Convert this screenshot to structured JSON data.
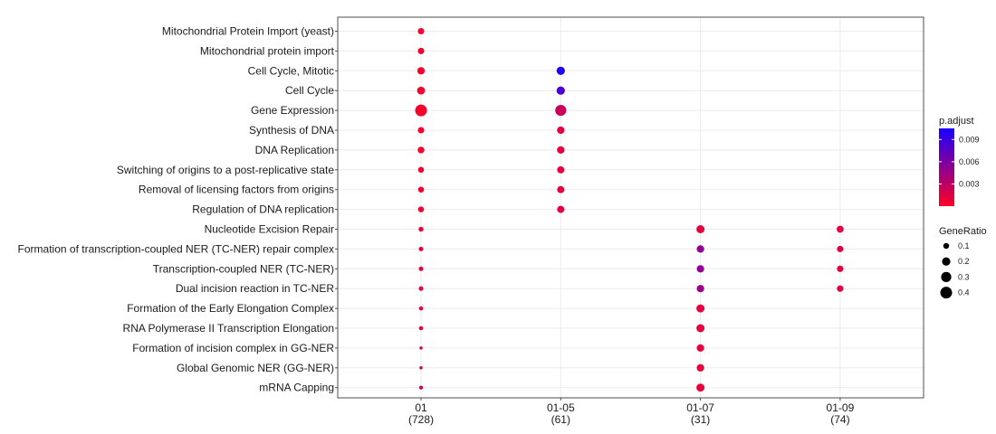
{
  "chart_data": {
    "type": "scatter",
    "subtype": "dotplot",
    "title": "",
    "xlabel": "",
    "ylabel": "",
    "grid": true,
    "legend_placement": "right",
    "categories_y": [
      "Mitochondrial Protein Import (yeast)",
      "Mitochondrial protein import",
      "Cell Cycle, Mitotic",
      "Cell Cycle",
      "Gene Expression",
      "Synthesis of DNA",
      "DNA Replication",
      "Switching of origins to a post-replicative state",
      "Removal of licensing factors from origins",
      "Regulation of DNA replication",
      "Nucleotide Excision Repair",
      "Formation of transcription-coupled NER (TC-NER) repair complex",
      "Transcription-coupled NER (TC-NER)",
      "Dual incision reaction in TC-NER",
      "Formation of the Early Elongation Complex",
      "RNA Polymerase II Transcription Elongation",
      "Formation of incision complex in GG-NER",
      "Global Genomic NER (GG-NER)",
      "mRNA Capping"
    ],
    "categories_x": [
      {
        "label": "01",
        "count": "(728)"
      },
      {
        "label": "01-05",
        "count": "(61)"
      },
      {
        "label": "01-07",
        "count": "(31)"
      },
      {
        "label": "01-09",
        "count": "(74)"
      }
    ],
    "size_legend": {
      "title": "GeneRatio",
      "values": [
        0.1,
        0.2,
        0.3,
        0.4
      ],
      "labels": [
        "0.1",
        "0.2",
        "0.3",
        "0.4"
      ]
    },
    "color_legend": {
      "title": "p.adjust",
      "range": [
        0.0,
        0.0105
      ],
      "ticks": [
        0.003,
        0.006,
        0.009
      ],
      "tick_labels": [
        "0.003",
        "0.006",
        "0.009"
      ],
      "low_color": "#ff0026",
      "high_color": "#1a00ff"
    },
    "points": [
      {
        "x": "01",
        "y": "Mitochondrial Protein Import (yeast)",
        "gene_ratio": 0.12,
        "p_adjust": 0.0004
      },
      {
        "x": "01",
        "y": "Mitochondrial protein import",
        "gene_ratio": 0.12,
        "p_adjust": 0.0005
      },
      {
        "x": "01",
        "y": "Cell Cycle, Mitotic",
        "gene_ratio": 0.16,
        "p_adjust": 0.0004
      },
      {
        "x": "01",
        "y": "Cell Cycle",
        "gene_ratio": 0.18,
        "p_adjust": 0.0004
      },
      {
        "x": "01",
        "y": "Gene Expression",
        "gene_ratio": 0.4,
        "p_adjust": 0.0003
      },
      {
        "x": "01",
        "y": "Synthesis of DNA",
        "gene_ratio": 0.12,
        "p_adjust": 0.0004
      },
      {
        "x": "01",
        "y": "DNA Replication",
        "gene_ratio": 0.13,
        "p_adjust": 0.0004
      },
      {
        "x": "01",
        "y": "Switching of origins to a post-replicative state",
        "gene_ratio": 0.1,
        "p_adjust": 0.0005
      },
      {
        "x": "01",
        "y": "Removal of licensing factors from origins",
        "gene_ratio": 0.1,
        "p_adjust": 0.0005
      },
      {
        "x": "01",
        "y": "Regulation of DNA replication",
        "gene_ratio": 0.1,
        "p_adjust": 0.0005
      },
      {
        "x": "01",
        "y": "Nucleotide Excision Repair",
        "gene_ratio": 0.07,
        "p_adjust": 0.0008
      },
      {
        "x": "01",
        "y": "Formation of transcription-coupled NER (TC-NER) repair complex",
        "gene_ratio": 0.06,
        "p_adjust": 0.0009
      },
      {
        "x": "01",
        "y": "Transcription-coupled NER (TC-NER)",
        "gene_ratio": 0.06,
        "p_adjust": 0.0009
      },
      {
        "x": "01",
        "y": "Dual incision reaction in TC-NER",
        "gene_ratio": 0.06,
        "p_adjust": 0.0009
      },
      {
        "x": "01",
        "y": "Formation of the Early Elongation Complex",
        "gene_ratio": 0.05,
        "p_adjust": 0.0009
      },
      {
        "x": "01",
        "y": "RNA Polymerase II Transcription Elongation",
        "gene_ratio": 0.05,
        "p_adjust": 0.001
      },
      {
        "x": "01",
        "y": "Formation of incision complex in GG-NER",
        "gene_ratio": 0.03,
        "p_adjust": 0.002
      },
      {
        "x": "01",
        "y": "Global Genomic NER (GG-NER)",
        "gene_ratio": 0.03,
        "p_adjust": 0.002
      },
      {
        "x": "01",
        "y": "mRNA Capping",
        "gene_ratio": 0.04,
        "p_adjust": 0.002
      },
      {
        "x": "01-05",
        "y": "Cell Cycle, Mitotic",
        "gene_ratio": 0.2,
        "p_adjust": 0.0103
      },
      {
        "x": "01-05",
        "y": "Cell Cycle",
        "gene_ratio": 0.2,
        "p_adjust": 0.0083
      },
      {
        "x": "01-05",
        "y": "Gene Expression",
        "gene_ratio": 0.35,
        "p_adjust": 0.0025
      },
      {
        "x": "01-05",
        "y": "Synthesis of DNA",
        "gene_ratio": 0.16,
        "p_adjust": 0.0013
      },
      {
        "x": "01-05",
        "y": "DNA Replication",
        "gene_ratio": 0.16,
        "p_adjust": 0.0013
      },
      {
        "x": "01-05",
        "y": "Switching of origins to a post-replicative state",
        "gene_ratio": 0.15,
        "p_adjust": 0.0013
      },
      {
        "x": "01-05",
        "y": "Removal of licensing factors from origins",
        "gene_ratio": 0.15,
        "p_adjust": 0.0013
      },
      {
        "x": "01-05",
        "y": "Regulation of DNA replication",
        "gene_ratio": 0.15,
        "p_adjust": 0.0013
      },
      {
        "x": "01-07",
        "y": "Nucleotide Excision Repair",
        "gene_ratio": 0.19,
        "p_adjust": 0.0012
      },
      {
        "x": "01-07",
        "y": "Formation of transcription-coupled NER (TC-NER) repair complex",
        "gene_ratio": 0.16,
        "p_adjust": 0.0052
      },
      {
        "x": "01-07",
        "y": "Transcription-coupled NER (TC-NER)",
        "gene_ratio": 0.16,
        "p_adjust": 0.0052
      },
      {
        "x": "01-07",
        "y": "Dual incision reaction in TC-NER",
        "gene_ratio": 0.16,
        "p_adjust": 0.0046
      },
      {
        "x": "01-07",
        "y": "Formation of the Early Elongation Complex",
        "gene_ratio": 0.19,
        "p_adjust": 0.0012
      },
      {
        "x": "01-07",
        "y": "RNA Polymerase II Transcription Elongation",
        "gene_ratio": 0.19,
        "p_adjust": 0.0012
      },
      {
        "x": "01-07",
        "y": "Formation of incision complex in GG-NER",
        "gene_ratio": 0.16,
        "p_adjust": 0.0012
      },
      {
        "x": "01-07",
        "y": "Global Genomic NER (GG-NER)",
        "gene_ratio": 0.16,
        "p_adjust": 0.0012
      },
      {
        "x": "01-07",
        "y": "mRNA Capping",
        "gene_ratio": 0.19,
        "p_adjust": 0.0011
      },
      {
        "x": "01-09",
        "y": "Nucleotide Excision Repair",
        "gene_ratio": 0.14,
        "p_adjust": 0.0012
      },
      {
        "x": "01-09",
        "y": "Formation of transcription-coupled NER (TC-NER) repair complex",
        "gene_ratio": 0.12,
        "p_adjust": 0.0013
      },
      {
        "x": "01-09",
        "y": "Transcription-coupled NER (TC-NER)",
        "gene_ratio": 0.12,
        "p_adjust": 0.0013
      },
      {
        "x": "01-09",
        "y": "Dual incision reaction in TC-NER",
        "gene_ratio": 0.12,
        "p_adjust": 0.0013
      }
    ]
  }
}
